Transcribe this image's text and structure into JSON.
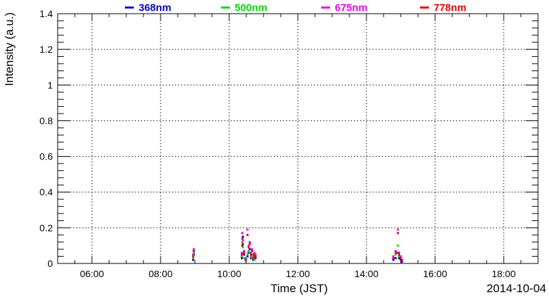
{
  "chart_data": {
    "type": "scatter",
    "title": "",
    "xlabel": "Time (JST)",
    "ylabel": "Intensity (a.u.)",
    "date_label": "2014-10-04",
    "xlim": [
      "05:00",
      "19:00"
    ],
    "ylim": [
      0,
      1.4
    ],
    "grid": true,
    "legend_position": "top",
    "x_ticks": [
      "06:00",
      "08:00",
      "10:00",
      "12:00",
      "14:00",
      "16:00",
      "18:00"
    ],
    "y_ticks": [
      "0",
      "0.2",
      "0.4",
      "0.6",
      "0.8",
      "1",
      "1.2",
      "1.4"
    ],
    "series": [
      {
        "name": "368nm",
        "color": "#0000cc",
        "points": [
          [
            "08:57",
            0.02
          ],
          [
            "08:58",
            0.05
          ],
          [
            "10:22",
            0.03
          ],
          [
            "10:23",
            0.1
          ],
          [
            "10:24",
            0.15
          ],
          [
            "10:26",
            0.05
          ],
          [
            "10:29",
            0.02
          ],
          [
            "10:32",
            0.04
          ],
          [
            "10:34",
            0.06
          ],
          [
            "10:36",
            0.08
          ],
          [
            "10:38",
            0.03
          ],
          [
            "10:40",
            0.05
          ],
          [
            "10:42",
            0.02
          ],
          [
            "10:44",
            0.04
          ],
          [
            "10:46",
            0.03
          ],
          [
            "14:47",
            0.02
          ],
          [
            "14:51",
            0.03
          ],
          [
            "14:55",
            0.06
          ],
          [
            "14:57",
            0.03
          ],
          [
            "15:00",
            0.02
          ],
          [
            "15:02",
            0.01
          ]
        ]
      },
      {
        "name": "500nm",
        "color": "#00dd00",
        "points": [
          [
            "08:57",
            0.03
          ],
          [
            "08:58",
            0.06
          ],
          [
            "10:22",
            0.04
          ],
          [
            "10:23",
            0.12
          ],
          [
            "10:24",
            0.09
          ],
          [
            "10:26",
            0.03
          ],
          [
            "10:29",
            0.01
          ],
          [
            "10:32",
            0.05
          ],
          [
            "10:34",
            0.07
          ],
          [
            "10:36",
            0.06
          ],
          [
            "10:38",
            0.04
          ],
          [
            "10:40",
            0.03
          ],
          [
            "10:42",
            0.05
          ],
          [
            "10:44",
            0.02
          ],
          [
            "10:46",
            0.04
          ],
          [
            "14:47",
            0.03
          ],
          [
            "14:51",
            0.05
          ],
          [
            "14:55",
            0.1
          ],
          [
            "14:57",
            0.04
          ],
          [
            "15:00",
            0.03
          ],
          [
            "15:02",
            0.02
          ]
        ]
      },
      {
        "name": "675nm",
        "color": "#ee00ee",
        "points": [
          [
            "08:57",
            0.05
          ],
          [
            "08:58",
            0.08
          ],
          [
            "10:22",
            0.06
          ],
          [
            "10:23",
            0.17
          ],
          [
            "10:24",
            0.13
          ],
          [
            "10:26",
            0.07
          ],
          [
            "10:29",
            0.03
          ],
          [
            "10:32",
            0.19
          ],
          [
            "10:34",
            0.1
          ],
          [
            "10:36",
            0.12
          ],
          [
            "10:38",
            0.06
          ],
          [
            "10:40",
            0.08
          ],
          [
            "10:42",
            0.04
          ],
          [
            "10:44",
            0.06
          ],
          [
            "10:46",
            0.05
          ],
          [
            "14:47",
            0.04
          ],
          [
            "14:51",
            0.07
          ],
          [
            "14:55",
            0.19
          ],
          [
            "14:57",
            0.06
          ],
          [
            "15:00",
            0.04
          ],
          [
            "15:02",
            0.02
          ]
        ]
      },
      {
        "name": "778nm",
        "color": "#ee0000",
        "points": [
          [
            "08:57",
            0.04
          ],
          [
            "08:58",
            0.07
          ],
          [
            "10:22",
            0.05
          ],
          [
            "10:23",
            0.14
          ],
          [
            "10:24",
            0.11
          ],
          [
            "10:26",
            0.06
          ],
          [
            "10:29",
            0.02
          ],
          [
            "10:32",
            0.16
          ],
          [
            "10:34",
            0.09
          ],
          [
            "10:36",
            0.11
          ],
          [
            "10:38",
            0.05
          ],
          [
            "10:40",
            0.07
          ],
          [
            "10:42",
            0.03
          ],
          [
            "10:44",
            0.05
          ],
          [
            "10:46",
            0.04
          ],
          [
            "14:47",
            0.03
          ],
          [
            "14:51",
            0.06
          ],
          [
            "14:55",
            0.17
          ],
          [
            "14:57",
            0.05
          ],
          [
            "15:00",
            0.03
          ],
          [
            "15:02",
            0.02
          ]
        ]
      }
    ]
  }
}
